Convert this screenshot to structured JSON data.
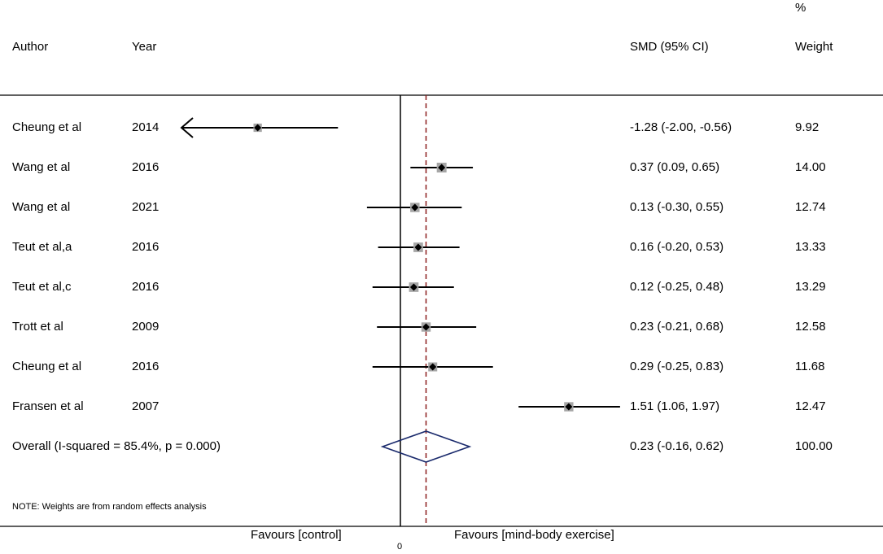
{
  "headers": {
    "author": "Author",
    "year": "Year",
    "smd": "SMD (95% CI)",
    "weight_pct": "%",
    "weight": "Weight"
  },
  "note": "NOTE: Weights are from random effects analysis",
  "axis": {
    "zero_label": "0",
    "favours_left": "Favours [control]",
    "favours_right": "Favours [mind-body exercise]"
  },
  "chart_data": {
    "type": "forest",
    "null_line": 0,
    "pooled_line": 0.23,
    "studies": [
      {
        "author": "Cheung et al",
        "year": "2014",
        "smd": -1.28,
        "lo": -2.0,
        "hi": -0.56,
        "ci_text": "-1.28 (-2.00, -0.56)",
        "weight": "9.92",
        "w": 9.92,
        "truncated_left": true
      },
      {
        "author": "Wang et al",
        "year": "2016",
        "smd": 0.37,
        "lo": 0.09,
        "hi": 0.65,
        "ci_text": "0.37 (0.09, 0.65)",
        "weight": "14.00",
        "w": 14.0
      },
      {
        "author": "Wang et al",
        "year": "2021",
        "smd": 0.13,
        "lo": -0.3,
        "hi": 0.55,
        "ci_text": "0.13 (-0.30, 0.55)",
        "weight": "12.74",
        "w": 12.74
      },
      {
        "author": "Teut et al,a",
        "year": "2016",
        "smd": 0.16,
        "lo": -0.2,
        "hi": 0.53,
        "ci_text": "0.16 (-0.20, 0.53)",
        "weight": "13.33",
        "w": 13.33
      },
      {
        "author": "Teut et al,c",
        "year": "2016",
        "smd": 0.12,
        "lo": -0.25,
        "hi": 0.48,
        "ci_text": "0.12 (-0.25, 0.48)",
        "weight": "13.29",
        "w": 13.29
      },
      {
        "author": "Trott et al",
        "year": "2009",
        "smd": 0.23,
        "lo": -0.21,
        "hi": 0.68,
        "ci_text": "0.23 (-0.21, 0.68)",
        "weight": "12.58",
        "w": 12.58
      },
      {
        "author": "Cheung et al",
        "year": "2016",
        "smd": 0.29,
        "lo": -0.25,
        "hi": 0.83,
        "ci_text": "0.29 (-0.25, 0.83)",
        "weight": "11.68",
        "w": 11.68
      },
      {
        "author": "Fransen et al",
        "year": "2007",
        "smd": 1.51,
        "lo": 1.06,
        "hi": 1.97,
        "ci_text": "1.51 (1.06, 1.97)",
        "weight": "12.47",
        "w": 12.47
      }
    ],
    "overall": {
      "label": "Overall  (I-squared = 85.4%, p = 0.000)",
      "smd": 0.23,
      "lo": -0.16,
      "hi": 0.62,
      "ci_text": "0.23 (-0.16, 0.62)",
      "weight": "100.00"
    },
    "colors": {
      "marker": "#000000",
      "weight_box": "#a6a6a6",
      "pooled_line": "#8b1a1a",
      "overall_diamond": "#1a2a6c"
    }
  }
}
